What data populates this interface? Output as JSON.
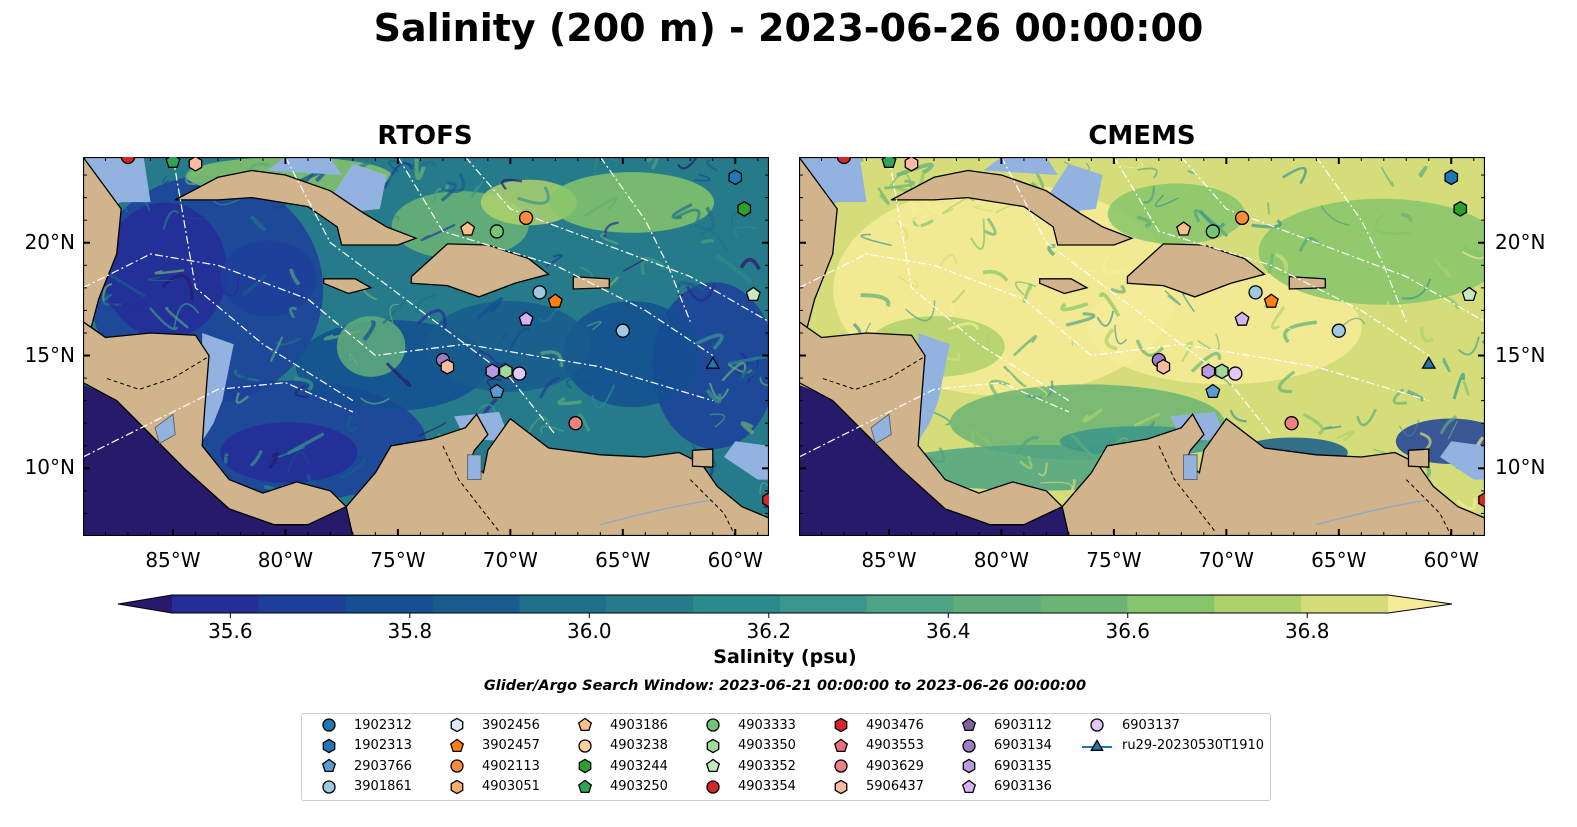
{
  "title": "Salinity (200 m) - 2023-06-26 00:00:00",
  "panels": [
    {
      "title": "RTOFS",
      "model": "rtofs"
    },
    {
      "title": "CMEMS",
      "model": "cmems"
    }
  ],
  "axes": {
    "lon_ticks": [
      "85°W",
      "80°W",
      "75°W",
      "70°W",
      "65°W",
      "60°W"
    ],
    "lon_values": [
      -85,
      -80,
      -75,
      -70,
      -65,
      -60
    ],
    "lat_ticks": [
      "20°N",
      "15°N",
      "10°N"
    ],
    "lat_values": [
      20,
      15,
      10
    ],
    "extent": {
      "lon_min": -89,
      "lon_max": -58.5,
      "lat_min": 7,
      "lat_max": 23.8
    }
  },
  "colorbar": {
    "label": "Salinity (psu)",
    "ticks": [
      "35.6",
      "35.8",
      "36.0",
      "36.2",
      "36.4",
      "36.6",
      "36.8"
    ],
    "tick_values": [
      35.6,
      35.8,
      36.0,
      36.2,
      36.4,
      36.6,
      36.8
    ],
    "min": 35.55,
    "max": 36.95,
    "extend": "both",
    "colors": [
      "#271a6b",
      "#252d96",
      "#1d3f9a",
      "#134f91",
      "#175c8c",
      "#1f6f8a",
      "#267b8a",
      "#2b8a8b",
      "#3b978b",
      "#4ea384",
      "#5ead7b",
      "#6bb473",
      "#86c56a",
      "#aed16c",
      "#d4dd7a",
      "#f6ec98"
    ]
  },
  "search_window": "Glider/Argo Search Window: 2023-06-21 00:00:00 to 2023-06-26 00:00:00",
  "legend": [
    {
      "id": "1902312",
      "marker": "circle",
      "color": "#1f77b4"
    },
    {
      "id": "1902313",
      "marker": "hexagon",
      "color": "#1f77b4"
    },
    {
      "id": "2903766",
      "marker": "pentagon",
      "color": "#5b9bd5"
    },
    {
      "id": "3901861",
      "marker": "circle",
      "color": "#9ecae1"
    },
    {
      "id": "3902456",
      "marker": "hexagon",
      "color": "#deebf7"
    },
    {
      "id": "3902457",
      "marker": "pentagon",
      "color": "#ff7f0e"
    },
    {
      "id": "4902113",
      "marker": "circle",
      "color": "#fd8d3c"
    },
    {
      "id": "4903051",
      "marker": "hexagon",
      "color": "#fdae6b"
    },
    {
      "id": "4903186",
      "marker": "pentagon",
      "color": "#fdc086"
    },
    {
      "id": "4903238",
      "marker": "circle",
      "color": "#fdd0a2"
    },
    {
      "id": "4903244",
      "marker": "hexagon",
      "color": "#2ca02c"
    },
    {
      "id": "4903250",
      "marker": "pentagon",
      "color": "#31a354"
    },
    {
      "id": "4903333",
      "marker": "circle",
      "color": "#74c476"
    },
    {
      "id": "4903350",
      "marker": "hexagon",
      "color": "#a1d99b"
    },
    {
      "id": "4903352",
      "marker": "pentagon",
      "color": "#c7e9c0"
    },
    {
      "id": "4903354",
      "marker": "circle",
      "color": "#d62728"
    },
    {
      "id": "4903476",
      "marker": "hexagon",
      "color": "#d62728"
    },
    {
      "id": "4903553",
      "marker": "pentagon",
      "color": "#e7707a"
    },
    {
      "id": "4903629",
      "marker": "circle",
      "color": "#f08080"
    },
    {
      "id": "5906437",
      "marker": "hexagon",
      "color": "#fcbba1"
    },
    {
      "id": "6903112",
      "marker": "pentagon",
      "color": "#8064a2"
    },
    {
      "id": "6903134",
      "marker": "circle",
      "color": "#9e7cc6"
    },
    {
      "id": "6903135",
      "marker": "hexagon",
      "color": "#b99ae0"
    },
    {
      "id": "6903136",
      "marker": "pentagon",
      "color": "#d4b3f2"
    },
    {
      "id": "6903137",
      "marker": "circle",
      "color": "#e3c6fa"
    },
    {
      "id": "ru29-20230530T1910",
      "marker": "triangle-line",
      "color": "#1f77b4"
    }
  ],
  "markers": [
    {
      "id": "4903354",
      "lon": -87.0,
      "lat": 23.8
    },
    {
      "id": "4903250",
      "lon": -85.0,
      "lat": 23.6
    },
    {
      "id": "5906437",
      "lon": -84.0,
      "lat": 23.5
    },
    {
      "id": "1902313",
      "lon": -60.0,
      "lat": 22.9
    },
    {
      "id": "4903244",
      "lon": -59.6,
      "lat": 21.5
    },
    {
      "id": "4902113",
      "lon": -69.3,
      "lat": 21.1
    },
    {
      "id": "4903186",
      "lon": -71.9,
      "lat": 20.6
    },
    {
      "id": "4903333",
      "lon": -70.6,
      "lat": 20.5
    },
    {
      "id": "3901861",
      "lon": -68.7,
      "lat": 17.8
    },
    {
      "id": "3902457",
      "lon": -68.0,
      "lat": 17.4
    },
    {
      "id": "4903352",
      "lon": -59.2,
      "lat": 17.7
    },
    {
      "id": "6903136",
      "lon": -69.3,
      "lat": 16.6
    },
    {
      "id": "3901861",
      "lon": -65.0,
      "lat": 16.1
    },
    {
      "id": "6903134",
      "lon": -73.0,
      "lat": 14.8
    },
    {
      "id": "5906437",
      "lon": -72.8,
      "lat": 14.5
    },
    {
      "id": "6903135",
      "lon": -70.8,
      "lat": 14.3
    },
    {
      "id": "4903350",
      "lon": -70.2,
      "lat": 14.3
    },
    {
      "id": "6903137",
      "lon": -69.6,
      "lat": 14.2
    },
    {
      "id": "2903766",
      "lon": -70.6,
      "lat": 13.4
    },
    {
      "id": "4903629",
      "lon": -67.1,
      "lat": 12.0
    },
    {
      "id": "4903476",
      "lon": -58.5,
      "lat": 8.6
    },
    {
      "id": "ru29-20230530T1910",
      "lon": -61.0,
      "lat": 14.6
    }
  ]
}
